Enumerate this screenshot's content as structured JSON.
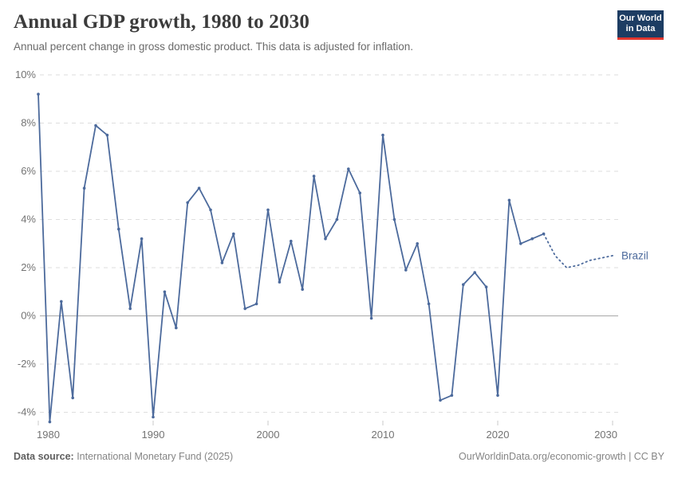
{
  "header": {
    "title": "Annual GDP growth, 1980 to 2030",
    "subtitle": "Annual percent change in gross domestic product. This data is adjusted for inflation.",
    "logo_line1": "Our World",
    "logo_line2": "in Data"
  },
  "chart_data": {
    "type": "line",
    "title": "Annual GDP growth, 1980 to 2030",
    "entity": "Brazil",
    "end_label": "Brazil",
    "unit": "%",
    "xlim": [
      1980,
      2030
    ],
    "ylim": [
      -4.5,
      10
    ],
    "x_ticks": [
      1980,
      1990,
      2000,
      2010,
      2020,
      2030
    ],
    "y_ticks": [
      10,
      8,
      6,
      4,
      2,
      0,
      -2,
      -4
    ],
    "y_tick_suffix": "%",
    "grid": true,
    "legend_position": "end-of-line",
    "line_color": "#4c6a9c",
    "grid_color": "#dedede",
    "zero_line_color": "#a8a8a8",
    "axis_label_color": "#737373",
    "series": [
      {
        "name": "Brazil",
        "style": "solid",
        "markers": true,
        "x": [
          1980,
          1981,
          1982,
          1983,
          1984,
          1985,
          1986,
          1987,
          1988,
          1989,
          1990,
          1991,
          1992,
          1993,
          1994,
          1995,
          1996,
          1997,
          1998,
          1999,
          2000,
          2001,
          2002,
          2003,
          2004,
          2005,
          2006,
          2007,
          2008,
          2009,
          2010,
          2011,
          2012,
          2013,
          2014,
          2015,
          2016,
          2017,
          2018,
          2019,
          2020,
          2021,
          2022,
          2023,
          2024
        ],
        "values": [
          9.2,
          -4.4,
          0.6,
          -3.4,
          5.3,
          7.9,
          7.5,
          3.6,
          0.3,
          3.2,
          -4.2,
          1.0,
          -0.5,
          4.7,
          5.3,
          4.4,
          2.2,
          3.4,
          0.3,
          0.5,
          4.4,
          1.4,
          3.1,
          1.1,
          5.8,
          3.2,
          4.0,
          6.1,
          5.1,
          -0.1,
          7.5,
          4.0,
          1.9,
          3.0,
          0.5,
          -3.5,
          -3.3,
          1.3,
          1.8,
          1.2,
          -3.3,
          4.8,
          3.0,
          3.2,
          3.4
        ]
      },
      {
        "name": "Brazil (projection)",
        "style": "dotted",
        "markers": false,
        "x": [
          2024,
          2025,
          2026,
          2027,
          2028,
          2029,
          2030
        ],
        "values": [
          3.4,
          2.5,
          2.0,
          2.1,
          2.3,
          2.4,
          2.5
        ]
      }
    ]
  },
  "footer": {
    "source_label": "Data source:",
    "source_text": " International Monetary Fund (2025)",
    "rights_text": "OurWorldinData.org/economic-growth | CC BY"
  }
}
